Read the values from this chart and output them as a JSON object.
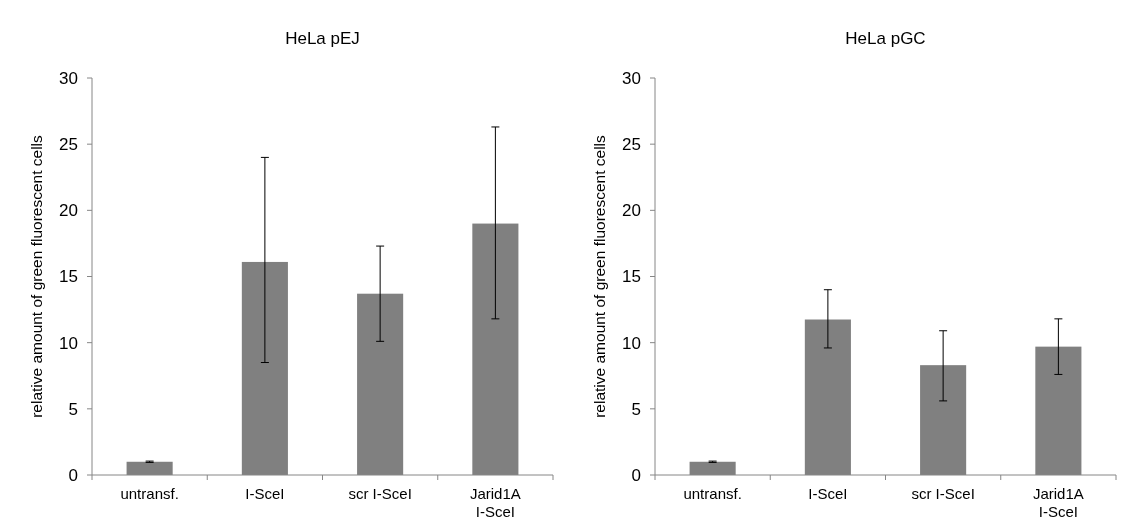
{
  "chart_data": [
    {
      "type": "bar",
      "title": "HeLa pEJ",
      "ylabel": "relative amount of green fluorescent cells",
      "categories": [
        "untransf.",
        "I-SceI",
        "scr I-SceI",
        "Jarid1A I-SceI"
      ],
      "values": [
        1.0,
        16.1,
        13.7,
        19.0
      ],
      "errors": [
        [
          0.95,
          1.05
        ],
        [
          8.5,
          24.0
        ],
        [
          10.1,
          17.3
        ],
        [
          11.8,
          26.3
        ]
      ],
      "color": "#808080",
      "ylim": [
        0,
        30
      ],
      "yticks": [
        0,
        5,
        10,
        15,
        20,
        25,
        30
      ],
      "grid": false
    },
    {
      "type": "bar",
      "title": "HeLa pGC",
      "ylabel": "relative amount of green fluorescent cells",
      "categories": [
        "untransf.",
        "I-SceI",
        "scr I-SceI",
        "Jarid1A I-SceI"
      ],
      "values": [
        1.0,
        11.75,
        8.3,
        9.7
      ],
      "errors": [
        [
          0.95,
          1.05
        ],
        [
          9.6,
          14.0
        ],
        [
          5.6,
          10.9
        ],
        [
          7.6,
          11.8
        ]
      ],
      "color": "#808080",
      "ylim": [
        0,
        30
      ],
      "yticks": [
        0,
        5,
        10,
        15,
        20,
        25,
        30
      ],
      "grid": false
    }
  ]
}
